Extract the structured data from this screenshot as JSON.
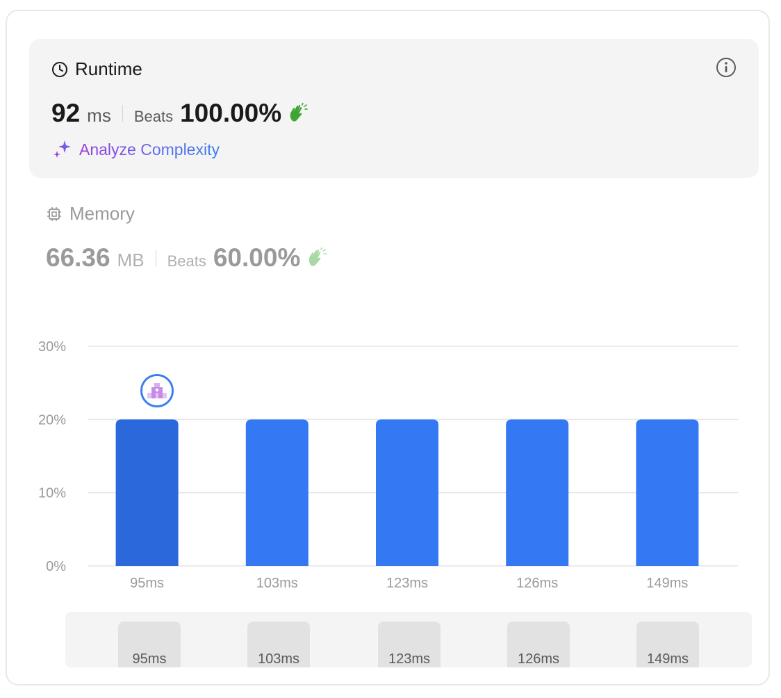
{
  "runtime": {
    "title": "Runtime",
    "value": "92",
    "unit": "ms",
    "beats_label": "Beats",
    "beats_value": "100.00%",
    "analyze_label": "Analyze Complexity"
  },
  "memory": {
    "title": "Memory",
    "value": "66.36",
    "unit": "MB",
    "beats_label": "Beats",
    "beats_value": "60.00%"
  },
  "colors": {
    "bar": "#3479f3",
    "bar_selected": "#2b68dc",
    "grid": "#e6e6e6",
    "axis_text": "#9a9a9a",
    "clap_active": "#3fa535",
    "clap_muted": "#a8d8a3"
  },
  "chart_data": {
    "type": "bar",
    "categories": [
      "95ms",
      "103ms",
      "123ms",
      "126ms",
      "149ms"
    ],
    "values": [
      20,
      20,
      20,
      20,
      20
    ],
    "y_ticks": [
      "0%",
      "10%",
      "20%",
      "30%"
    ],
    "ylim": [
      0,
      30
    ],
    "grid": true,
    "highlighted_category": "95ms"
  },
  "scroller": {
    "items": [
      "95ms",
      "103ms",
      "123ms",
      "126ms",
      "149ms"
    ]
  }
}
